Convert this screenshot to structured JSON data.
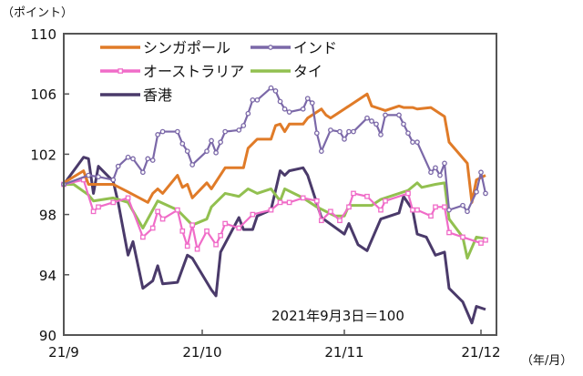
{
  "chart_data": {
    "type": "line",
    "ylabel": "（ポイント）",
    "xlabel": "（年/月）",
    "annotation": "2021年9月3日＝100",
    "ylim": [
      90,
      110
    ],
    "yticks": [
      90,
      94,
      98,
      102,
      106,
      110
    ],
    "xticks": [
      {
        "label": "21/9",
        "date": "2021-09-03"
      },
      {
        "label": "21/10",
        "date": "2021-10-01"
      },
      {
        "label": "21/11",
        "date": "2021-11-01"
      },
      {
        "label": "21/12",
        "date": "2021-12-01"
      }
    ],
    "grid": false,
    "legend_position": "top-left",
    "series": [
      {
        "name": "シンガポール",
        "color": "#E07B28",
        "marker": "none",
        "points": [
          [
            "2021-09-03",
            100.1
          ],
          [
            "2021-09-07",
            100.9
          ],
          [
            "2021-09-08",
            100
          ],
          [
            "2021-09-13",
            100
          ],
          [
            "2021-09-16",
            99.5
          ],
          [
            "2021-09-20",
            98.8
          ],
          [
            "2021-09-21",
            99.4
          ],
          [
            "2021-09-22",
            99.7
          ],
          [
            "2021-09-23",
            99.4
          ],
          [
            "2021-09-26",
            100.6
          ],
          [
            "2021-09-27",
            99.8
          ],
          [
            "2021-09-28",
            100
          ],
          [
            "2021-09-29",
            99.1
          ],
          [
            "2021-10-02",
            100.1
          ],
          [
            "2021-10-03",
            99.7
          ],
          [
            "2021-10-06",
            101.1
          ],
          [
            "2021-10-10",
            101.1
          ],
          [
            "2021-10-11",
            102.4
          ],
          [
            "2021-10-13",
            103
          ],
          [
            "2021-10-16",
            103
          ],
          [
            "2021-10-17",
            103.9
          ],
          [
            "2021-10-18",
            104
          ],
          [
            "2021-10-19",
            103.5
          ],
          [
            "2021-10-20",
            104
          ],
          [
            "2021-10-23",
            104
          ],
          [
            "2021-10-24",
            104.4
          ],
          [
            "2021-10-27",
            105
          ],
          [
            "2021-10-28",
            104.6
          ],
          [
            "2021-10-29",
            104.4
          ],
          [
            "2021-11-01",
            105
          ],
          [
            "2021-11-02",
            105.2
          ],
          [
            "2021-11-06",
            106
          ],
          [
            "2021-11-07",
            105.2
          ],
          [
            "2021-11-09",
            105
          ],
          [
            "2021-11-10",
            104.9
          ],
          [
            "2021-11-13",
            105.2
          ],
          [
            "2021-11-14",
            105.1
          ],
          [
            "2021-11-16",
            105.1
          ],
          [
            "2021-11-17",
            105
          ],
          [
            "2021-11-20",
            105.1
          ],
          [
            "2021-11-22",
            104.7
          ],
          [
            "2021-11-23",
            104.5
          ],
          [
            "2021-11-24",
            102.8
          ],
          [
            "2021-11-28",
            101.4
          ],
          [
            "2021-11-29",
            98.8
          ],
          [
            "2021-11-30",
            100.3
          ],
          [
            "2021-12-02",
            100.6
          ]
        ]
      },
      {
        "name": "インド",
        "color": "#7B68A8",
        "marker": "circle",
        "points": [
          [
            "2021-09-03",
            100
          ],
          [
            "2021-09-08",
            100.6
          ],
          [
            "2021-09-10",
            100.5
          ],
          [
            "2021-09-13",
            100.3
          ],
          [
            "2021-09-14",
            101.2
          ],
          [
            "2021-09-16",
            101.8
          ],
          [
            "2021-09-17",
            101.7
          ],
          [
            "2021-09-19",
            100.8
          ],
          [
            "2021-09-20",
            101.7
          ],
          [
            "2021-09-21",
            101.6
          ],
          [
            "2021-09-22",
            103.3
          ],
          [
            "2021-09-23",
            103.5
          ],
          [
            "2021-09-26",
            103.5
          ],
          [
            "2021-09-27",
            102.7
          ],
          [
            "2021-09-28",
            102.2
          ],
          [
            "2021-09-29",
            101.3
          ],
          [
            "2021-10-02",
            102.2
          ],
          [
            "2021-10-03",
            102.9
          ],
          [
            "2021-10-04",
            102.1
          ],
          [
            "2021-10-05",
            102.8
          ],
          [
            "2021-10-06",
            103.5
          ],
          [
            "2021-10-09",
            103.6
          ],
          [
            "2021-10-10",
            103.9
          ],
          [
            "2021-10-11",
            104.7
          ],
          [
            "2021-10-12",
            105.6
          ],
          [
            "2021-10-13",
            105.6
          ],
          [
            "2021-10-16",
            106.4
          ],
          [
            "2021-10-17",
            106.2
          ],
          [
            "2021-10-18",
            105.5
          ],
          [
            "2021-10-19",
            105
          ],
          [
            "2021-10-20",
            104.8
          ],
          [
            "2021-10-23",
            105
          ],
          [
            "2021-10-24",
            105.7
          ],
          [
            "2021-10-25",
            105.4
          ],
          [
            "2021-10-26",
            103.4
          ],
          [
            "2021-10-27",
            102.2
          ],
          [
            "2021-10-29",
            103.6
          ],
          [
            "2021-10-31",
            103.5
          ],
          [
            "2021-11-01",
            103
          ],
          [
            "2021-11-02",
            103.5
          ],
          [
            "2021-11-03",
            103.5
          ],
          [
            "2021-11-06",
            104.4
          ],
          [
            "2021-11-07",
            104.2
          ],
          [
            "2021-11-08",
            104
          ],
          [
            "2021-11-09",
            103.3
          ],
          [
            "2021-11-10",
            104.6
          ],
          [
            "2021-11-13",
            104.6
          ],
          [
            "2021-11-14",
            104
          ],
          [
            "2021-11-15",
            103.4
          ],
          [
            "2021-11-16",
            102.8
          ],
          [
            "2021-11-17",
            102.8
          ],
          [
            "2021-11-20",
            100.8
          ],
          [
            "2021-11-21",
            101.1
          ],
          [
            "2021-11-22",
            100.6
          ],
          [
            "2021-11-23",
            101.4
          ],
          [
            "2021-11-24",
            98.3
          ],
          [
            "2021-11-27",
            98.6
          ],
          [
            "2021-11-28",
            98.2
          ],
          [
            "2021-11-30",
            99.5
          ],
          [
            "2021-12-01",
            100.8
          ],
          [
            "2021-12-02",
            99.4
          ]
        ]
      },
      {
        "name": "オーストラリア",
        "color": "#F06CC8",
        "marker": "square",
        "points": [
          [
            "2021-09-03",
            100
          ],
          [
            "2021-09-07",
            100.3
          ],
          [
            "2021-09-09",
            98.2
          ],
          [
            "2021-09-10",
            98.5
          ],
          [
            "2021-09-13",
            98.8
          ],
          [
            "2021-09-16",
            99.1
          ],
          [
            "2021-09-19",
            96.5
          ],
          [
            "2021-09-21",
            97.1
          ],
          [
            "2021-09-22",
            98.2
          ],
          [
            "2021-09-23",
            97.7
          ],
          [
            "2021-09-26",
            98.3
          ],
          [
            "2021-09-27",
            96.9
          ],
          [
            "2021-09-28",
            95.9
          ],
          [
            "2021-09-29",
            97.3
          ],
          [
            "2021-09-30",
            95.7
          ],
          [
            "2021-10-02",
            96.9
          ],
          [
            "2021-10-04",
            96
          ],
          [
            "2021-10-05",
            96.6
          ],
          [
            "2021-10-06",
            97.4
          ],
          [
            "2021-10-09",
            97.1
          ],
          [
            "2021-10-12",
            98
          ],
          [
            "2021-10-16",
            98.3
          ],
          [
            "2021-10-18",
            98.8
          ],
          [
            "2021-10-20",
            98.8
          ],
          [
            "2021-10-23",
            99.1
          ],
          [
            "2021-10-26",
            98.9
          ],
          [
            "2021-10-27",
            97.6
          ],
          [
            "2021-10-29",
            98.2
          ],
          [
            "2021-10-31",
            97.6
          ],
          [
            "2021-11-02",
            98.5
          ],
          [
            "2021-11-03",
            99.4
          ],
          [
            "2021-11-06",
            99.2
          ],
          [
            "2021-11-09",
            98.3
          ],
          [
            "2021-11-10",
            98.9
          ],
          [
            "2021-11-15",
            99.4
          ],
          [
            "2021-11-16",
            98.3
          ],
          [
            "2021-11-17",
            98.3
          ],
          [
            "2021-11-20",
            97.9
          ],
          [
            "2021-11-21",
            98.5
          ],
          [
            "2021-11-23",
            98.5
          ],
          [
            "2021-11-24",
            96.8
          ],
          [
            "2021-11-27",
            96.5
          ],
          [
            "2021-12-01",
            96.1
          ],
          [
            "2021-12-02",
            96.3
          ]
        ]
      },
      {
        "name": "タイ",
        "color": "#92C050",
        "marker": "none",
        "points": [
          [
            "2021-09-03",
            100
          ],
          [
            "2021-09-05",
            100
          ],
          [
            "2021-09-08",
            99.3
          ],
          [
            "2021-09-09",
            98.9
          ],
          [
            "2021-09-13",
            99.1
          ],
          [
            "2021-09-16",
            98.8
          ],
          [
            "2021-09-19",
            97.1
          ],
          [
            "2021-09-22",
            98.9
          ],
          [
            "2021-09-26",
            98.3
          ],
          [
            "2021-09-29",
            97.3
          ],
          [
            "2021-10-02",
            97.7
          ],
          [
            "2021-10-03",
            98.5
          ],
          [
            "2021-10-06",
            99.4
          ],
          [
            "2021-10-09",
            99.2
          ],
          [
            "2021-10-11",
            99.7
          ],
          [
            "2021-10-13",
            99.4
          ],
          [
            "2021-10-16",
            99.7
          ],
          [
            "2021-10-18",
            98.9
          ],
          [
            "2021-10-19",
            99.7
          ],
          [
            "2021-10-23",
            99.1
          ],
          [
            "2021-10-26",
            98.5
          ],
          [
            "2021-10-30",
            97.9
          ],
          [
            "2021-11-01",
            97.9
          ],
          [
            "2021-11-02",
            98.6
          ],
          [
            "2021-11-07",
            98.6
          ],
          [
            "2021-11-09",
            99
          ],
          [
            "2021-11-15",
            99.6
          ],
          [
            "2021-11-17",
            100.1
          ],
          [
            "2021-11-18",
            99.8
          ],
          [
            "2021-11-21",
            100
          ],
          [
            "2021-11-23",
            100.1
          ],
          [
            "2021-11-24",
            97.7
          ],
          [
            "2021-11-27",
            96.5
          ],
          [
            "2021-11-28",
            95.1
          ],
          [
            "2021-11-30",
            96.5
          ],
          [
            "2021-12-02",
            96.4
          ]
        ]
      },
      {
        "name": "香港",
        "color": "#4A3A6A",
        "marker": "none",
        "points": [
          [
            "2021-09-03",
            100
          ],
          [
            "2021-09-07",
            101.8
          ],
          [
            "2021-09-08",
            101.7
          ],
          [
            "2021-09-09",
            99.4
          ],
          [
            "2021-09-10",
            101.2
          ],
          [
            "2021-09-13",
            100.2
          ],
          [
            "2021-09-14",
            98.8
          ],
          [
            "2021-09-16",
            95.3
          ],
          [
            "2021-09-17",
            96.2
          ],
          [
            "2021-09-19",
            93.1
          ],
          [
            "2021-09-21",
            93.6
          ],
          [
            "2021-09-22",
            94.6
          ],
          [
            "2021-09-23",
            93.4
          ],
          [
            "2021-09-26",
            93.5
          ],
          [
            "2021-09-28",
            95.3
          ],
          [
            "2021-09-29",
            95.1
          ],
          [
            "2021-10-03",
            93
          ],
          [
            "2021-10-04",
            92.6
          ],
          [
            "2021-10-05",
            95.5
          ],
          [
            "2021-10-09",
            97.8
          ],
          [
            "2021-10-10",
            97
          ],
          [
            "2021-10-12",
            97
          ],
          [
            "2021-10-13",
            97.9
          ],
          [
            "2021-10-16",
            98.3
          ],
          [
            "2021-10-18",
            100.9
          ],
          [
            "2021-10-19",
            100.6
          ],
          [
            "2021-10-20",
            100.9
          ],
          [
            "2021-10-23",
            101.1
          ],
          [
            "2021-10-24",
            100.6
          ],
          [
            "2021-10-27",
            97.8
          ],
          [
            "2021-11-01",
            96.7
          ],
          [
            "2021-11-02",
            97.4
          ],
          [
            "2021-11-04",
            96
          ],
          [
            "2021-11-06",
            95.6
          ],
          [
            "2021-11-09",
            97.7
          ],
          [
            "2021-11-13",
            98.1
          ],
          [
            "2021-11-14",
            99.2
          ],
          [
            "2021-11-16",
            98.3
          ],
          [
            "2021-11-17",
            96.7
          ],
          [
            "2021-11-19",
            96.5
          ],
          [
            "2021-11-21",
            95.3
          ],
          [
            "2021-11-23",
            95.5
          ],
          [
            "2021-11-24",
            93.1
          ],
          [
            "2021-11-27",
            92.2
          ],
          [
            "2021-11-29",
            90.8
          ],
          [
            "2021-11-30",
            91.9
          ],
          [
            "2021-12-02",
            91.7
          ]
        ]
      }
    ]
  }
}
